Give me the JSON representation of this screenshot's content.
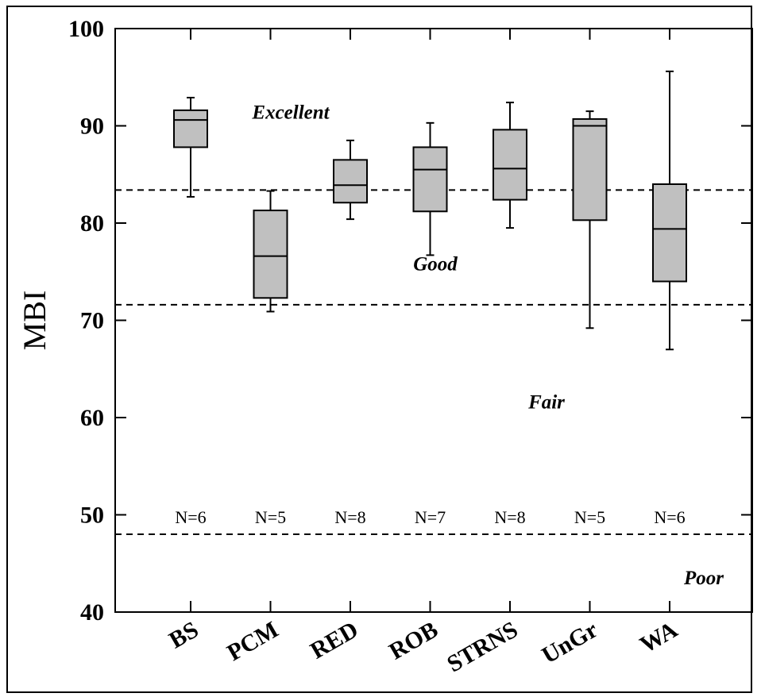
{
  "chart_data": {
    "type": "box",
    "ylabel": "MBI",
    "xlabel": "",
    "title": "",
    "ylim": [
      40,
      100
    ],
    "yticks": [
      40,
      50,
      60,
      70,
      80,
      90,
      100
    ],
    "categories": [
      "BS",
      "PCM",
      "RED",
      "ROB",
      "STRNS",
      "UnGr",
      "WA"
    ],
    "boxes": [
      {
        "category": "BS",
        "min": 82.7,
        "q1": 87.8,
        "median": 90.6,
        "q3": 91.6,
        "max": 92.9,
        "n_label": "N=6"
      },
      {
        "category": "PCM",
        "min": 70.9,
        "q1": 72.3,
        "median": 76.6,
        "q3": 81.3,
        "max": 83.3,
        "n_label": "N=5"
      },
      {
        "category": "RED",
        "min": 80.4,
        "q1": 82.1,
        "median": 83.9,
        "q3": 86.5,
        "max": 88.5,
        "n_label": "N=8"
      },
      {
        "category": "ROB",
        "min": 76.7,
        "q1": 81.2,
        "median": 85.5,
        "q3": 87.8,
        "max": 90.3,
        "n_label": "N=7"
      },
      {
        "category": "STRNS",
        "min": 79.5,
        "q1": 82.4,
        "median": 85.6,
        "q3": 89.6,
        "max": 92.4,
        "n_label": "N=8"
      },
      {
        "category": "UnGr",
        "min": 69.2,
        "q1": 80.3,
        "median": 90.0,
        "q3": 90.7,
        "max": 91.5,
        "n_label": "N=5"
      },
      {
        "category": "WA",
        "min": 67.0,
        "q1": 74.0,
        "median": 79.4,
        "q3": 84.0,
        "max": 95.6,
        "n_label": "N=6"
      }
    ],
    "thresholds": [
      83.4,
      71.6,
      48.0
    ],
    "class_labels": [
      {
        "text": "Excellent",
        "y": 91.4,
        "near": "BS-RED"
      },
      {
        "text": "Good",
        "y": 75.8,
        "near": "ROB"
      },
      {
        "text": "Fair",
        "y": 61.6,
        "near": "STRNS-UnGr"
      },
      {
        "text": "Poor",
        "y": 43.5,
        "near": "right"
      }
    ],
    "colors": {
      "box_fill": "#c0c0c0",
      "line": "#000000"
    },
    "grid": false
  }
}
